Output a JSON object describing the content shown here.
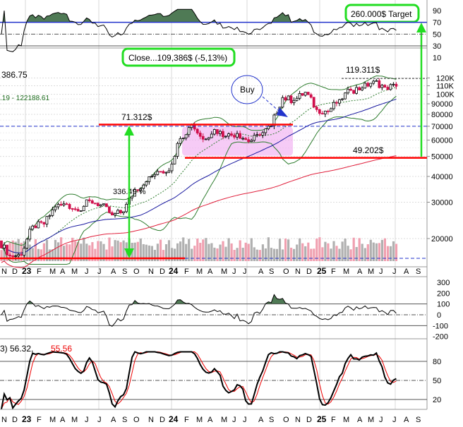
{
  "chart_data": {
    "type": "candlestick",
    "scale": "log",
    "x_tick_labels": [
      "N",
      "D",
      "23",
      "F",
      "M",
      "A",
      "M",
      "J",
      "J",
      "A",
      "S",
      "O",
      "N",
      "D",
      "24",
      "F",
      "M",
      "A",
      "M",
      "J",
      "J",
      "A",
      "S",
      "O",
      "N",
      "D",
      "25",
      "F",
      "M",
      "A",
      "M",
      "J",
      "J",
      "A",
      "S"
    ],
    "monthly_close": [
      16500,
      16600,
      23000,
      23500,
      28500,
      29300,
      27200,
      30500,
      29200,
      26000,
      27000,
      34500,
      37700,
      42300,
      42600,
      61000,
      71000,
      60600,
      67500,
      62700,
      64600,
      59000,
      63300,
      70200,
      96400,
      93400,
      102400,
      84300,
      82500,
      94200,
      104600,
      107200,
      115800,
      108200,
      109386
    ],
    "first_open": 19500,
    "price_axis": {
      "ticks": [
        {
          "label": "120K",
          "value": 120000
        },
        {
          "label": "110K",
          "value": 110000
        },
        {
          "label": "100K",
          "value": 100000
        },
        {
          "label": "90000",
          "value": 90000
        },
        {
          "label": "80000",
          "value": 80000
        },
        {
          "label": "70000",
          "value": 70000
        },
        {
          "label": "60000",
          "value": 60000
        },
        {
          "label": "50000",
          "value": 50000
        },
        {
          "label": "40000",
          "value": 40000
        },
        {
          "label": "30000",
          "value": 30000
        },
        {
          "label": "20000",
          "value": 20000
        }
      ]
    },
    "rsi_panel": {
      "ticks": [
        "90",
        "70",
        "50",
        "30",
        "10"
      ],
      "tick_values": [
        90,
        70,
        50,
        30,
        10
      ],
      "overbought": 70
    },
    "cci_panel": {
      "ticks": [
        "300",
        "200",
        "100",
        "0",
        "-100",
        "-200"
      ],
      "tick_values": [
        300,
        200,
        100,
        0,
        -100,
        -200
      ]
    },
    "stoch_panel": {
      "ticks": [
        "80",
        "50",
        "20"
      ],
      "tick_values": [
        80,
        50,
        20
      ],
      "legend_prefix": "3) 56.32,",
      "legend_d": "55.56"
    },
    "header": {
      "last_price_fragment": "386.75",
      "band_range_fragment": ".19 - 122188.61"
    },
    "annotations": {
      "target": "260.000$ Target",
      "close": "Close...109,386$ (-5,13%)",
      "buy": "Buy",
      "high_label": "119.311$",
      "resistance_label": "71.312$",
      "support_label": "49.202$",
      "gain_label": "336.49 %",
      "resistance_value": 71312,
      "support_value": 49202,
      "high_value": 119311,
      "target_line_rsi": 70
    },
    "colors": {
      "up": "#ffffff",
      "down": "#d0104c",
      "sma_short": "#2e7d2e",
      "sma_mid": "#1a1aa0",
      "sma_long": "#e0203c",
      "bands": "#2e7d2e",
      "annot_green": "#22dd22",
      "level_red": "#ff0000",
      "buy_blue": "#2233cc",
      "range_box": "#f0a8f0"
    }
  }
}
